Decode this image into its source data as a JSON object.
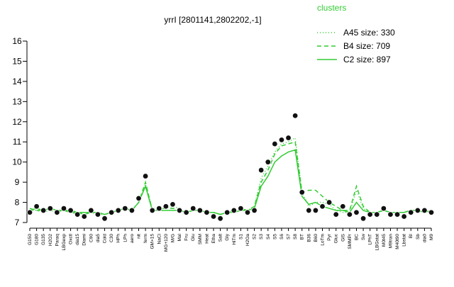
{
  "chart_data": {
    "type": "line",
    "title": "yrrI [2801141,2802202,-1]",
    "legend_title": "clusters",
    "legend_position": "top-right",
    "categories": [
      "G150",
      "G180",
      "G135",
      "H2O2",
      "Paraq",
      "LBGexp",
      "Oxctl",
      "dia15",
      "Diami",
      "C90",
      "dia5",
      "Cold",
      "C30",
      "HPh",
      "LPh",
      "aero",
      "nit",
      "ferm",
      "GM+15",
      "NaCl",
      "MG+120",
      "M/G",
      "Mal",
      "Fru",
      "Glu",
      "SMM",
      "Heat",
      "Etha",
      "Salt",
      "Gly",
      "HiTm",
      "S1",
      "H2Oa",
      "S2",
      "S3",
      "S4",
      "S5",
      "S6",
      "S7",
      "S8",
      "BT",
      "B36",
      "B60",
      "LoTm",
      "Pyr",
      "Gluc",
      "GlS",
      "SMMPr",
      "BC",
      "Sw",
      "LPhT",
      "LBGstat",
      "M0t45",
      "M9tran",
      "M40t90",
      "Lbstat",
      "BI",
      "Sb",
      "dia0",
      "M9"
    ],
    "series": [
      {
        "name": "A45 size: 330",
        "color": "#33cc33",
        "dash": "dotted",
        "values": [
          7.6,
          7.6,
          7.5,
          7.6,
          7.5,
          7.6,
          7.5,
          7.4,
          7.4,
          7.5,
          7.4,
          7.4,
          7.5,
          7.6,
          7.6,
          7.6,
          8.0,
          8.9,
          7.7,
          7.7,
          7.7,
          7.8,
          7.7,
          7.5,
          7.6,
          7.6,
          7.5,
          7.5,
          7.4,
          7.5,
          7.6,
          7.7,
          7.6,
          7.8,
          9.2,
          9.8,
          10.5,
          10.9,
          11.0,
          11.2,
          8.5,
          7.8,
          8.0,
          8.0,
          7.9,
          7.6,
          7.5,
          7.5,
          8.6,
          7.7,
          7.5,
          7.5,
          7.6,
          7.5,
          7.5,
          7.5,
          7.6,
          7.6,
          7.5,
          7.6
        ]
      },
      {
        "name": "B4 size: 709",
        "color": "#33cc33",
        "dash": "dashed",
        "values": [
          7.7,
          7.6,
          7.6,
          7.7,
          7.6,
          7.6,
          7.5,
          7.5,
          7.4,
          7.5,
          7.5,
          7.4,
          7.5,
          7.6,
          7.7,
          7.6,
          8.0,
          9.0,
          7.6,
          7.7,
          7.7,
          7.7,
          7.7,
          7.5,
          7.6,
          7.6,
          7.5,
          7.5,
          7.4,
          7.5,
          7.5,
          7.7,
          7.6,
          7.8,
          9.0,
          9.6,
          10.4,
          10.8,
          10.9,
          11.0,
          8.5,
          8.6,
          8.6,
          8.3,
          8.0,
          7.8,
          7.6,
          7.6,
          8.8,
          7.8,
          7.5,
          7.5,
          7.6,
          7.5,
          7.5,
          7.5,
          7.6,
          7.6,
          7.5,
          7.6
        ]
      },
      {
        "name": "C2 size: 897",
        "color": "#33cc33",
        "dash": "solid",
        "values": [
          7.6,
          7.7,
          7.6,
          7.7,
          7.6,
          7.6,
          7.6,
          7.5,
          7.5,
          7.5,
          7.5,
          7.4,
          7.5,
          7.6,
          7.7,
          7.6,
          8.0,
          8.8,
          7.6,
          7.6,
          7.6,
          7.6,
          7.6,
          7.5,
          7.6,
          7.6,
          7.5,
          7.5,
          7.4,
          7.5,
          7.5,
          7.6,
          7.6,
          7.7,
          8.8,
          9.3,
          10.0,
          10.3,
          10.5,
          10.6,
          8.3,
          7.9,
          8.0,
          7.8,
          7.7,
          7.6,
          7.6,
          7.5,
          8.0,
          7.6,
          7.5,
          7.5,
          7.6,
          7.5,
          7.5,
          7.5,
          7.6,
          7.6,
          7.5,
          7.6
        ]
      }
    ],
    "points": [
      7.5,
      7.8,
      7.6,
      7.7,
      7.5,
      7.7,
      7.6,
      7.4,
      7.3,
      7.6,
      7.4,
      7.2,
      7.5,
      7.6,
      7.7,
      7.6,
      8.2,
      9.3,
      7.6,
      7.7,
      7.8,
      7.9,
      7.6,
      7.5,
      7.7,
      7.6,
      7.5,
      7.3,
      7.2,
      7.5,
      7.6,
      7.7,
      7.5,
      7.6,
      9.6,
      10.0,
      10.9,
      11.1,
      11.2,
      12.3,
      8.5,
      7.6,
      7.6,
      7.8,
      8.0,
      7.4,
      7.8,
      7.4,
      7.5,
      7.2,
      7.4,
      7.4,
      7.7,
      7.4,
      7.4,
      7.3,
      7.5,
      7.6,
      7.6,
      7.5
    ],
    "ylim": [
      7,
      16
    ],
    "yticks": [
      7,
      8,
      9,
      10,
      11,
      12,
      13,
      14,
      15,
      16
    ]
  }
}
